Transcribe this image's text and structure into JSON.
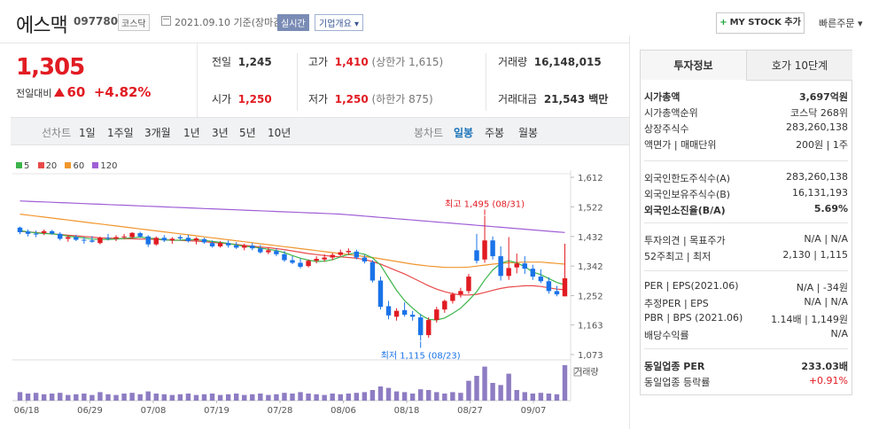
{
  "header": {
    "name": "에스맥",
    "code": "097780",
    "market": "코스닥",
    "date": "2021.09.10",
    "date_suffix": "기준(장마감)",
    "realtime": "실시간",
    "overview": "기업개요",
    "mystock": "MY STOCK 추가",
    "quick_order": "빠른주문"
  },
  "price": {
    "current": "1,305",
    "prev_label": "전일대비",
    "change": "60",
    "change_pct": "+4.82%"
  },
  "summary": {
    "prev_close_label": "전일",
    "prev_close": "1,245",
    "high_label": "고가",
    "high": "1,410",
    "upper_limit": "(상한가 1,615)",
    "volume_label": "거래량",
    "volume": "16,148,015",
    "open_label": "시가",
    "open": "1,250",
    "low_label": "저가",
    "low": "1,250",
    "lower_limit": "(하한가 875)",
    "value_label": "거래대금",
    "value": "21,543 백만"
  },
  "period": {
    "line_label": "선차트",
    "line_items": [
      "1일",
      "1주일",
      "3개월",
      "1년",
      "3년",
      "5년",
      "10년"
    ],
    "candle_label": "봉차트",
    "candle_items": [
      "일봉",
      "주봉",
      "월봉"
    ],
    "candle_selected": "일봉"
  },
  "legend": [
    {
      "name": "5",
      "color": "#3cb44b"
    },
    {
      "name": "20",
      "color": "#e84a4a"
    },
    {
      "name": "60",
      "color": "#f0962d"
    },
    {
      "name": "120",
      "color": "#a05fd6"
    }
  ],
  "chart_data": {
    "type": "candlestick",
    "y_ticks": [
      "1,612",
      "1,522",
      "1,432",
      "1,342",
      "1,252",
      "1,163",
      "1,073"
    ],
    "ylim": [
      1073,
      1612
    ],
    "x_labels": [
      "06/18",
      "06/29",
      "07/08",
      "07/19",
      "07/28",
      "08/06",
      "08/18",
      "08/27",
      "09/07"
    ],
    "annotation_high": "최고 1,495 (08/31)",
    "annotation_low": "최저 1,115 (08/23)",
    "volume_label": "거래량",
    "colors": {
      "up": "#e11b22",
      "down": "#1a73e8"
    },
    "candles": [
      [
        1459,
        1462,
        1439,
        1445
      ],
      [
        1447,
        1453,
        1432,
        1440
      ],
      [
        1441,
        1450,
        1430,
        1438
      ],
      [
        1443,
        1453,
        1436,
        1448
      ],
      [
        1448,
        1452,
        1437,
        1441
      ],
      [
        1440,
        1445,
        1420,
        1425
      ],
      [
        1425,
        1435,
        1416,
        1430
      ],
      [
        1430,
        1437,
        1418,
        1422
      ],
      [
        1422,
        1430,
        1410,
        1420
      ],
      [
        1420,
        1433,
        1413,
        1416
      ],
      [
        1412,
        1432,
        1408,
        1428
      ],
      [
        1428,
        1440,
        1420,
        1426
      ],
      [
        1425,
        1436,
        1418,
        1430
      ],
      [
        1430,
        1440,
        1425,
        1432
      ],
      [
        1430,
        1445,
        1426,
        1443
      ],
      [
        1442,
        1446,
        1428,
        1432
      ],
      [
        1432,
        1436,
        1400,
        1408
      ],
      [
        1408,
        1432,
        1404,
        1428
      ],
      [
        1428,
        1436,
        1415,
        1420
      ],
      [
        1420,
        1430,
        1410,
        1425
      ],
      [
        1430,
        1436,
        1420,
        1426
      ],
      [
        1428,
        1437,
        1414,
        1418
      ],
      [
        1420,
        1430,
        1408,
        1426
      ],
      [
        1424,
        1428,
        1410,
        1414
      ],
      [
        1412,
        1420,
        1398,
        1402
      ],
      [
        1402,
        1418,
        1398,
        1412
      ],
      [
        1412,
        1420,
        1398,
        1405
      ],
      [
        1405,
        1415,
        1394,
        1398
      ],
      [
        1398,
        1410,
        1390,
        1404
      ],
      [
        1404,
        1412,
        1390,
        1396
      ],
      [
        1396,
        1406,
        1380,
        1384
      ],
      [
        1384,
        1398,
        1378,
        1390
      ],
      [
        1388,
        1396,
        1372,
        1378
      ],
      [
        1378,
        1388,
        1355,
        1360
      ],
      [
        1360,
        1372,
        1348,
        1352
      ],
      [
        1352,
        1365,
        1335,
        1340
      ],
      [
        1342,
        1362,
        1338,
        1358
      ],
      [
        1358,
        1372,
        1350,
        1364
      ],
      [
        1362,
        1378,
        1355,
        1368
      ],
      [
        1368,
        1382,
        1360,
        1376
      ],
      [
        1376,
        1392,
        1370,
        1384
      ],
      [
        1384,
        1396,
        1375,
        1388
      ],
      [
        1386,
        1392,
        1362,
        1368
      ],
      [
        1368,
        1376,
        1350,
        1356
      ],
      [
        1354,
        1360,
        1292,
        1298
      ],
      [
        1298,
        1310,
        1210,
        1218
      ],
      [
        1220,
        1236,
        1180,
        1192
      ],
      [
        1188,
        1214,
        1176,
        1206
      ],
      [
        1208,
        1232,
        1188,
        1194
      ],
      [
        1194,
        1206,
        1176,
        1188
      ],
      [
        1186,
        1196,
        1115,
        1132
      ],
      [
        1132,
        1186,
        1124,
        1178
      ],
      [
        1178,
        1218,
        1170,
        1210
      ],
      [
        1210,
        1240,
        1200,
        1236
      ],
      [
        1236,
        1262,
        1228,
        1256
      ],
      [
        1256,
        1276,
        1246,
        1266
      ],
      [
        1266,
        1318,
        1258,
        1310
      ],
      [
        1390,
        1440,
        1350,
        1358
      ],
      [
        1362,
        1495,
        1352,
        1420
      ],
      [
        1420,
        1432,
        1362,
        1372
      ],
      [
        1372,
        1402,
        1298,
        1312
      ],
      [
        1312,
        1430,
        1300,
        1336
      ],
      [
        1338,
        1380,
        1320,
        1350
      ],
      [
        1350,
        1372,
        1318,
        1334
      ],
      [
        1334,
        1346,
        1300,
        1310
      ],
      [
        1310,
        1332,
        1290,
        1296
      ],
      [
        1296,
        1308,
        1258,
        1266
      ],
      [
        1266,
        1282,
        1250,
        1256
      ],
      [
        1250,
        1410,
        1250,
        1305
      ]
    ],
    "volumes": [
      1.2,
      1.0,
      1.1,
      0.9,
      1.0,
      1.1,
      0.8,
      0.9,
      1.0,
      0.8,
      1.2,
      0.9,
      0.8,
      1.0,
      1.1,
      0.9,
      1.3,
      1.0,
      0.9,
      0.8,
      0.9,
      1.0,
      0.8,
      0.9,
      1.0,
      0.8,
      0.9,
      1.0,
      0.8,
      0.9,
      1.0,
      0.8,
      0.9,
      1.1,
      1.0,
      1.2,
      1.0,
      0.9,
      0.8,
      1.0,
      0.9,
      1.0,
      1.1,
      1.2,
      1.5,
      2.0,
      1.8,
      1.3,
      1.2,
      1.0,
      1.6,
      1.5,
      1.2,
      1.0,
      1.2,
      1.1,
      2.8,
      3.5,
      4.8,
      2.5,
      2.2,
      3.8,
      1.5,
      1.2,
      1.0,
      1.1,
      1.0,
      0.9,
      5.0
    ],
    "ma5": [
      1450,
      1446,
      1443,
      1441,
      1440,
      1437,
      1433,
      1430,
      1428,
      1424,
      1423,
      1423,
      1424,
      1426,
      1428,
      1430,
      1427,
      1425,
      1422,
      1420,
      1421,
      1422,
      1422,
      1420,
      1417,
      1414,
      1411,
      1406,
      1402,
      1400,
      1397,
      1393,
      1389,
      1383,
      1374,
      1366,
      1360,
      1356,
      1357,
      1361,
      1370,
      1378,
      1382,
      1378,
      1367,
      1345,
      1306,
      1268,
      1237,
      1214,
      1194,
      1180,
      1178,
      1184,
      1198,
      1214,
      1238,
      1264,
      1300,
      1330,
      1350,
      1358,
      1352,
      1340,
      1324,
      1316,
      1304,
      1292,
      1285
    ],
    "ma20": [
      1448,
      1446,
      1444,
      1442,
      1440,
      1438,
      1436,
      1434,
      1432,
      1430,
      1428,
      1427,
      1426,
      1425,
      1425,
      1424,
      1424,
      1423,
      1422,
      1421,
      1420,
      1419,
      1418,
      1416,
      1414,
      1412,
      1410,
      1408,
      1405,
      1403,
      1400,
      1398,
      1395,
      1392,
      1388,
      1384,
      1380,
      1377,
      1374,
      1372,
      1370,
      1368,
      1366,
      1362,
      1356,
      1348,
      1338,
      1328,
      1318,
      1306,
      1294,
      1282,
      1272,
      1264,
      1258,
      1254,
      1254,
      1256,
      1262,
      1268,
      1274,
      1278,
      1280,
      1282,
      1282,
      1280,
      1276,
      1272,
      1270
    ],
    "ma60": [
      1500,
      1497,
      1494,
      1491,
      1488,
      1485,
      1482,
      1479,
      1476,
      1473,
      1470,
      1467,
      1464,
      1461,
      1458,
      1455,
      1452,
      1449,
      1446,
      1443,
      1440,
      1437,
      1434,
      1431,
      1428,
      1425,
      1422,
      1419,
      1416,
      1413,
      1410,
      1407,
      1404,
      1401,
      1398,
      1395,
      1392,
      1389,
      1386,
      1383,
      1380,
      1377,
      1374,
      1371,
      1368,
      1364,
      1360,
      1356,
      1352,
      1348,
      1345,
      1342,
      1340,
      1338,
      1338,
      1338,
      1339,
      1342,
      1345,
      1348,
      1350,
      1352,
      1353,
      1354,
      1354,
      1354,
      1352,
      1350,
      1348
    ],
    "ma120": [
      1540,
      1539,
      1538,
      1537,
      1536,
      1535,
      1534,
      1533,
      1532,
      1531,
      1530,
      1529,
      1528,
      1527,
      1526,
      1525,
      1524,
      1523,
      1522,
      1521,
      1520,
      1519,
      1518,
      1517,
      1516,
      1515,
      1514,
      1513,
      1512,
      1511,
      1510,
      1509,
      1508,
      1507,
      1506,
      1505,
      1504,
      1503,
      1502,
      1501,
      1500,
      1498,
      1496,
      1494,
      1492,
      1490,
      1488,
      1486,
      1484,
      1482,
      1480,
      1478,
      1476,
      1474,
      1472,
      1470,
      1468,
      1466,
      1464,
      1462,
      1460,
      1458,
      1456,
      1454,
      1452,
      1450,
      1448,
      1446,
      1444
    ]
  },
  "invest": {
    "tab_active": "투자정보",
    "tab_other": "호가 10단계",
    "rows1": [
      {
        "k": "시가총액",
        "v": "3,697억원"
      },
      {
        "k": "시가총액순위",
        "v": "코스닥 268위"
      },
      {
        "k": "상장주식수",
        "v": "283,260,138"
      },
      {
        "k": "액면가 | 매매단위",
        "v": "200원 | 1주"
      }
    ],
    "rows2": [
      {
        "k": "외국인한도주식수(A)",
        "v": "283,260,138"
      },
      {
        "k": "외국인보유주식수(B)",
        "v": "16,131,193"
      },
      {
        "k": "외국인소진율(B/A)",
        "v": "5.69%"
      }
    ],
    "rows3": [
      {
        "k": "투자의견 | 목표주가",
        "v": "N/A | N/A"
      },
      {
        "k": "52주최고 | 최저",
        "v": "2,130 | 1,115"
      }
    ],
    "rows4": [
      {
        "k": "PER | EPS(2021.06)",
        "v": "N/A | -34원"
      },
      {
        "k": "추정PER | EPS",
        "v": "N/A | N/A"
      },
      {
        "k": "PBR | BPS (2021.06)",
        "v": "1.14배 | 1,149원"
      },
      {
        "k": "배당수익률",
        "v": "N/A"
      }
    ],
    "rows5": [
      {
        "k": "동일업종 PER",
        "v": "233.03배"
      },
      {
        "k": "동일업종 등락률",
        "v": "+0.91%"
      }
    ]
  }
}
